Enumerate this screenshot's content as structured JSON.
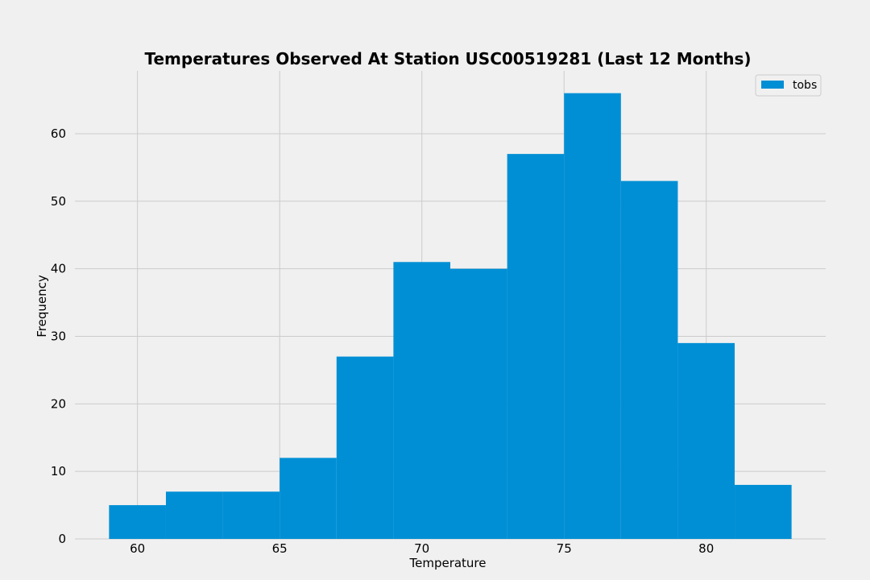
{
  "chart_data": {
    "type": "bar",
    "title": "Temperatures Observed At Station USC00519281 (Last 12 Months)",
    "xlabel": "Temperature",
    "ylabel": "Frequency",
    "bins": [
      {
        "x0": 59,
        "x1": 61,
        "value": 5
      },
      {
        "x0": 61,
        "x1": 63,
        "value": 7
      },
      {
        "x0": 63,
        "x1": 65,
        "value": 7
      },
      {
        "x0": 65,
        "x1": 67,
        "value": 12
      },
      {
        "x0": 67,
        "x1": 69,
        "value": 27
      },
      {
        "x0": 69,
        "x1": 71,
        "value": 41
      },
      {
        "x0": 71,
        "x1": 73,
        "value": 40
      },
      {
        "x0": 73,
        "x1": 75,
        "value": 57
      },
      {
        "x0": 75,
        "x1": 77,
        "value": 66
      },
      {
        "x0": 77,
        "x1": 79,
        "value": 53
      },
      {
        "x0": 79,
        "x1": 81,
        "value": 29
      },
      {
        "x0": 81,
        "x1": 83,
        "value": 8
      }
    ],
    "series": [
      {
        "name": "tobs",
        "color": "#008fd5"
      }
    ],
    "xticks": [
      60,
      65,
      70,
      75,
      80
    ],
    "yticks": [
      0,
      10,
      20,
      30,
      40,
      50,
      60
    ],
    "xlim": [
      57.8,
      84.2
    ],
    "ylim": [
      0,
      69.3
    ],
    "grid": true,
    "legend_position": "top-right"
  }
}
